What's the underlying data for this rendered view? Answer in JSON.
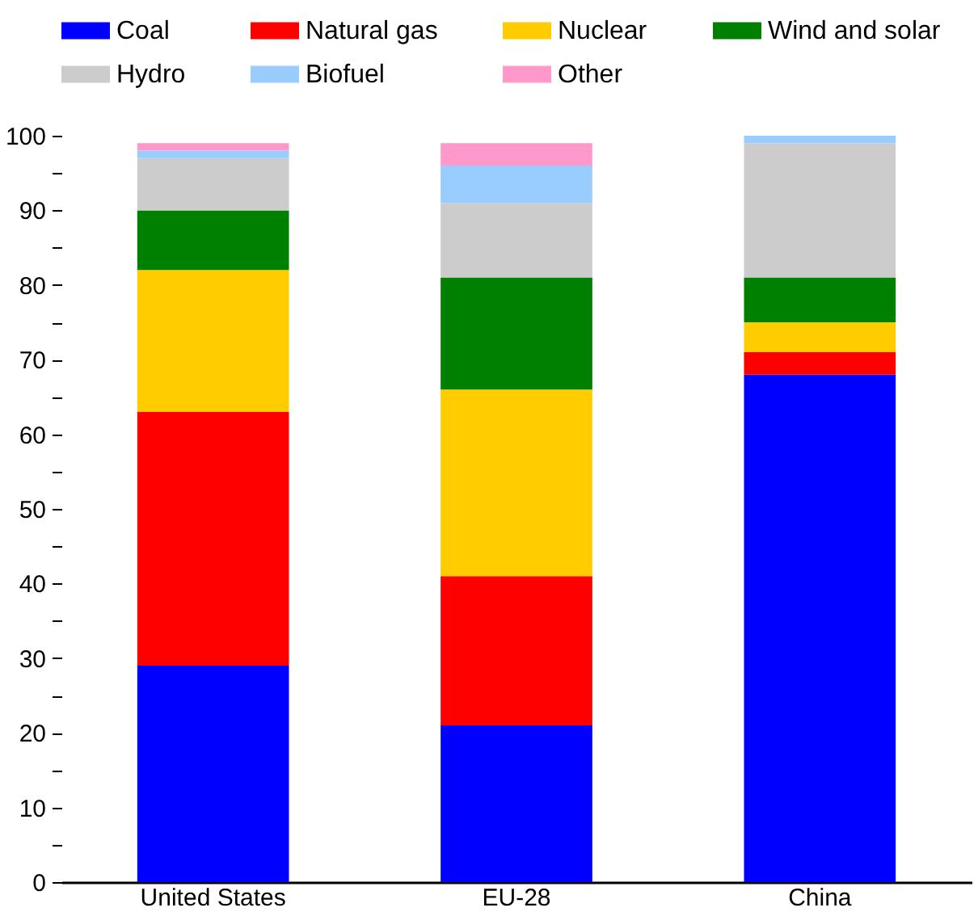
{
  "chart_data": {
    "type": "bar",
    "stacked": true,
    "categories": [
      "United States",
      "EU-28",
      "China"
    ],
    "series": [
      {
        "name": "Coal",
        "color": "#0000ff",
        "values": [
          29,
          21,
          68
        ]
      },
      {
        "name": "Natural gas",
        "color": "#ff0000",
        "values": [
          34,
          20,
          3
        ]
      },
      {
        "name": "Nuclear",
        "color": "#ffcc00",
        "values": [
          19,
          25,
          4
        ]
      },
      {
        "name": "Wind and solar",
        "color": "#008000",
        "values": [
          8,
          15,
          6
        ]
      },
      {
        "name": "Hydro",
        "color": "#cccccc",
        "values": [
          7,
          10,
          18
        ]
      },
      {
        "name": "Biofuel",
        "color": "#99ccff",
        "values": [
          1,
          5,
          1
        ]
      },
      {
        "name": "Other",
        "color": "#ff99cc",
        "values": [
          1,
          3,
          0
        ]
      }
    ],
    "ylim": [
      0,
      100
    ],
    "yticks": [
      0,
      {
        "value": 5,
        "label": null
      },
      10,
      {
        "value": 15,
        "label": null
      },
      20,
      {
        "value": 25,
        "label": null
      },
      30,
      {
        "value": 35,
        "label": null
      },
      40,
      {
        "value": 45,
        "label": null
      },
      50,
      {
        "value": 55,
        "label": null
      },
      60,
      {
        "value": 65,
        "label": null
      },
      70,
      {
        "value": 75,
        "label": null
      },
      80,
      {
        "value": 85,
        "label": null
      },
      90,
      {
        "value": 95,
        "label": null
      },
      100
    ],
    "grid": false,
    "legend": "top"
  }
}
